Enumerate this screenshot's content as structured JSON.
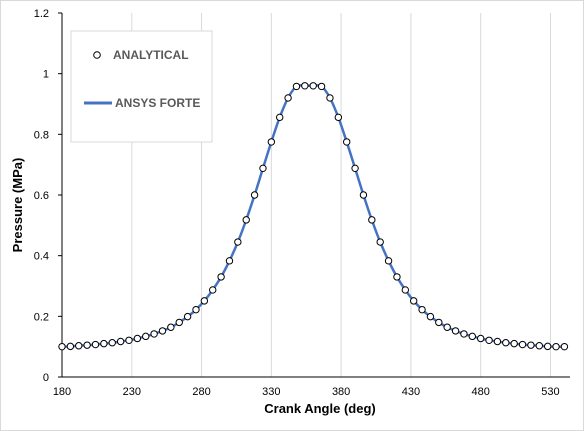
{
  "chart_data": {
    "type": "scatter",
    "title": "",
    "xlabel": "Crank Angle (deg)",
    "ylabel": "Pressure (MPa)",
    "xlim": [
      180,
      544
    ],
    "ylim": [
      0,
      1.2
    ],
    "x_ticks": [
      "180",
      "230",
      "280",
      "330",
      "380",
      "430",
      "480",
      "530"
    ],
    "y_ticks": [
      "0",
      "0.2",
      "0.4",
      "0.6",
      "0.8",
      "1",
      "1.2"
    ],
    "grid": "vertical",
    "legend": {
      "position": "top-left"
    },
    "series": [
      {
        "name": "ANALYTICAL",
        "style": "markers",
        "marker_color": "#000000",
        "x": [
          180,
          186,
          192,
          198,
          204,
          210,
          216,
          222,
          228,
          234,
          240,
          246,
          252,
          258,
          264,
          270,
          276,
          282,
          288,
          294,
          300,
          306,
          312,
          318,
          324,
          330,
          336,
          342,
          348,
          354,
          360,
          366,
          372,
          378,
          384,
          390,
          396,
          402,
          408,
          414,
          420,
          426,
          432,
          438,
          444,
          450,
          456,
          462,
          468,
          474,
          480,
          486,
          492,
          498,
          504,
          510,
          516,
          522,
          528,
          534,
          540
        ],
        "y": [
          0.1,
          0.101,
          0.103,
          0.105,
          0.107,
          0.11,
          0.113,
          0.117,
          0.121,
          0.127,
          0.134,
          0.142,
          0.152,
          0.164,
          0.18,
          0.199,
          0.222,
          0.251,
          0.287,
          0.33,
          0.383,
          0.445,
          0.518,
          0.6,
          0.688,
          0.775,
          0.856,
          0.92,
          0.958,
          0.96,
          0.96,
          0.958,
          0.92,
          0.856,
          0.775,
          0.688,
          0.6,
          0.518,
          0.445,
          0.383,
          0.33,
          0.287,
          0.251,
          0.222,
          0.199,
          0.18,
          0.164,
          0.152,
          0.142,
          0.134,
          0.127,
          0.121,
          0.117,
          0.113,
          0.11,
          0.107,
          0.105,
          0.103,
          0.101,
          0.1,
          0.1
        ]
      },
      {
        "name": "ANSYS FORTE",
        "style": "line",
        "color": "#4472C4",
        "x": [
          180,
          186,
          192,
          198,
          204,
          210,
          216,
          222,
          228,
          234,
          240,
          246,
          252,
          258,
          264,
          270,
          276,
          282,
          288,
          294,
          300,
          306,
          312,
          318,
          324,
          330,
          336,
          342,
          348,
          354,
          360,
          366,
          372,
          378,
          384,
          390,
          396,
          402,
          408,
          414,
          420,
          426,
          432,
          438,
          444,
          450,
          456,
          462,
          468,
          474,
          480,
          486,
          492,
          498,
          504,
          510,
          516,
          522,
          528,
          534,
          540
        ],
        "y": [
          0.1,
          0.101,
          0.103,
          0.105,
          0.107,
          0.11,
          0.113,
          0.117,
          0.121,
          0.127,
          0.134,
          0.142,
          0.152,
          0.164,
          0.18,
          0.199,
          0.222,
          0.251,
          0.287,
          0.33,
          0.383,
          0.445,
          0.518,
          0.6,
          0.688,
          0.775,
          0.856,
          0.92,
          0.958,
          0.96,
          0.96,
          0.958,
          0.92,
          0.856,
          0.775,
          0.688,
          0.6,
          0.518,
          0.445,
          0.383,
          0.33,
          0.287,
          0.251,
          0.222,
          0.199,
          0.18,
          0.164,
          0.152,
          0.142,
          0.134,
          0.127,
          0.121,
          0.117,
          0.113,
          0.11,
          0.107,
          0.105,
          0.103,
          0.101,
          0.1,
          0.1
        ]
      }
    ]
  }
}
